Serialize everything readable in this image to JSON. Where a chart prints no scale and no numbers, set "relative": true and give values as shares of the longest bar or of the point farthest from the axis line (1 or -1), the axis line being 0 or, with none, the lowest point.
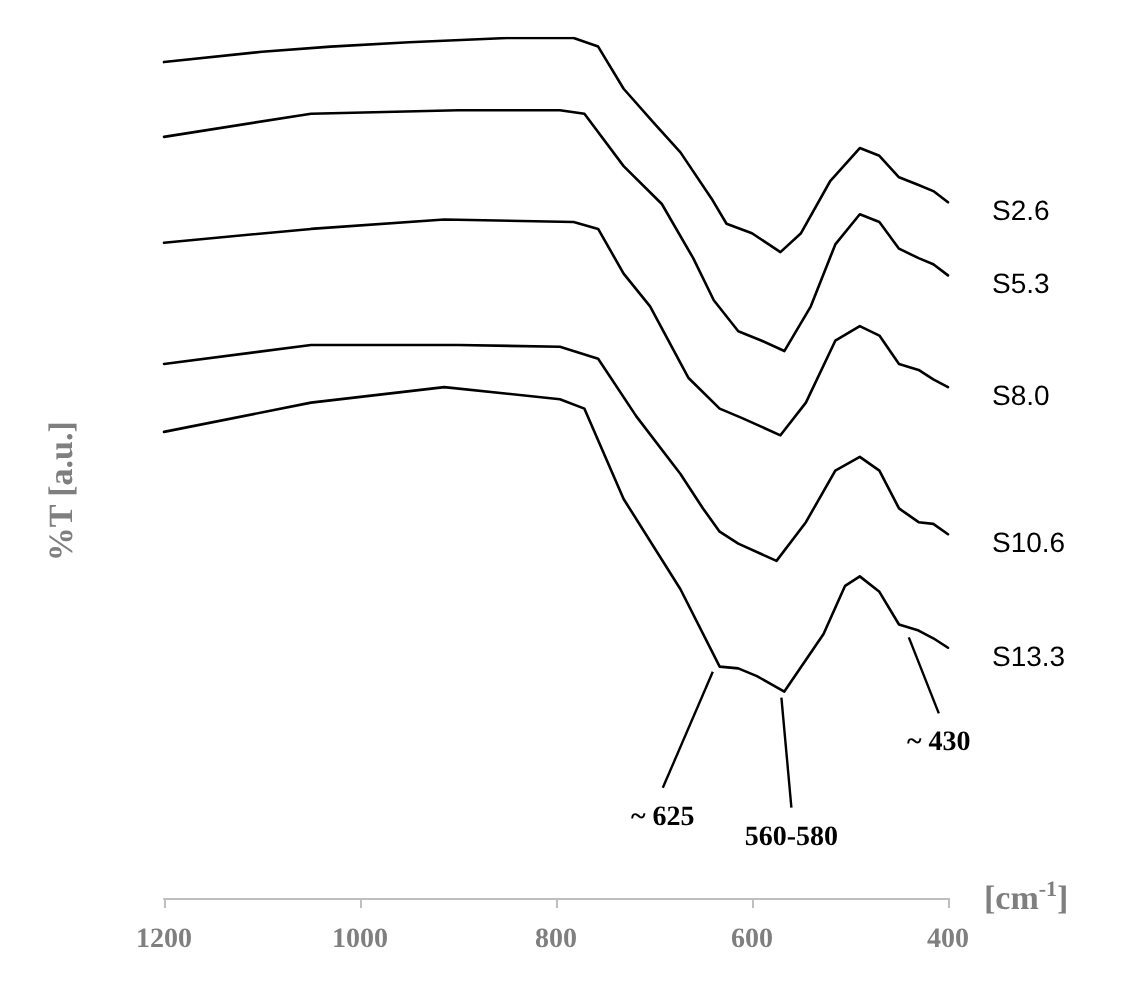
{
  "chart_data": {
    "type": "line",
    "relative": true,
    "xlabel": "[cm$^{-1}$]",
    "ylabel": "%T [a.u.]",
    "xlim": [
      1200,
      400
    ],
    "xticks": [
      1200,
      1000,
      800,
      600,
      400
    ],
    "marker": "none",
    "line_style": "solid",
    "grid": false,
    "legend": false,
    "tick_labels": "x",
    "series": [
      {
        "name": "S2.6",
        "color": "#000000",
        "x": [
          1200,
          1100,
          1030,
          950,
          850,
          782,
          757,
          731,
          700,
          673,
          640,
          626,
          600,
          571,
          550,
          520,
          490,
          470,
          450,
          430,
          415,
          400
        ],
        "values": [
          0.972,
          0.984,
          0.99,
          0.995,
          1.0,
          1.0,
          0.99,
          0.941,
          0.901,
          0.867,
          0.811,
          0.784,
          0.773,
          0.751,
          0.773,
          0.834,
          0.872,
          0.863,
          0.838,
          0.829,
          0.822,
          0.809
        ]
      },
      {
        "name": "S5.3",
        "color": "#000000",
        "x": [
          1200,
          1050,
          900,
          796,
          771,
          731,
          692,
          660,
          639,
          614,
          590,
          567,
          540,
          515,
          490,
          470,
          450,
          430,
          415,
          400
        ],
        "values": [
          0.885,
          0.912,
          0.916,
          0.916,
          0.912,
          0.851,
          0.807,
          0.744,
          0.695,
          0.659,
          0.648,
          0.636,
          0.688,
          0.76,
          0.795,
          0.786,
          0.755,
          0.744,
          0.737,
          0.724
        ]
      },
      {
        "name": "S8.0",
        "color": "#000000",
        "x": [
          1200,
          1050,
          914,
          782,
          757,
          731,
          704,
          665,
          633,
          610,
          571,
          545,
          515,
          490,
          470,
          450,
          430,
          415,
          400
        ],
        "values": [
          0.762,
          0.778,
          0.789,
          0.786,
          0.778,
          0.726,
          0.688,
          0.605,
          0.569,
          0.558,
          0.538,
          0.576,
          0.648,
          0.665,
          0.654,
          0.621,
          0.614,
          0.603,
          0.594
        ]
      },
      {
        "name": "S10.6",
        "color": "#000000",
        "x": [
          1200,
          1050,
          900,
          796,
          757,
          718,
          673,
          650,
          633,
          614,
          575,
          545,
          515,
          490,
          470,
          450,
          430,
          415,
          400
        ],
        "values": [
          0.621,
          0.643,
          0.643,
          0.641,
          0.627,
          0.56,
          0.493,
          0.453,
          0.426,
          0.412,
          0.392,
          0.437,
          0.497,
          0.513,
          0.497,
          0.453,
          0.437,
          0.435,
          0.423
        ]
      },
      {
        "name": "S13.3",
        "color": "#000000",
        "x": [
          1200,
          1050,
          914,
          796,
          771,
          731,
          673,
          633,
          614,
          595,
          567,
          527,
          505,
          490,
          470,
          450,
          430,
          415,
          400
        ],
        "values": [
          0.542,
          0.576,
          0.594,
          0.58,
          0.569,
          0.464,
          0.359,
          0.269,
          0.267,
          0.258,
          0.24,
          0.307,
          0.363,
          0.374,
          0.356,
          0.318,
          0.311,
          0.302,
          0.291
        ]
      }
    ],
    "annotations": [
      {
        "text": "~ 625",
        "x": 640,
        "y": 0.27
      },
      {
        "text": "560-580",
        "x": 570,
        "y": 0.24
      },
      {
        "text": "~ 430",
        "x": 440,
        "y": 0.31
      }
    ]
  }
}
